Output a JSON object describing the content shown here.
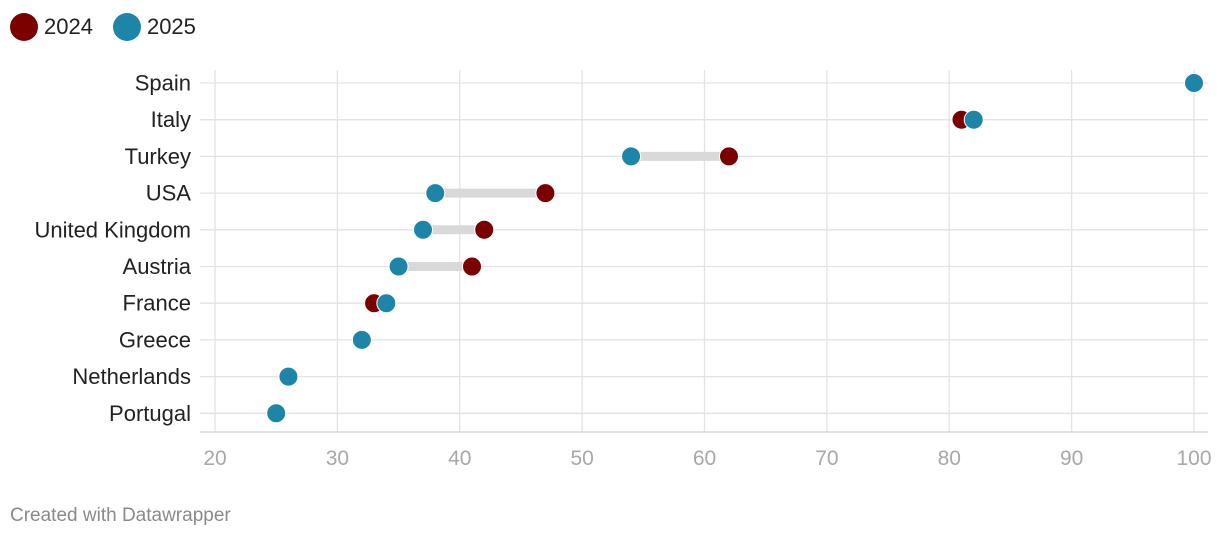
{
  "chart_data": {
    "type": "dot",
    "series": [
      {
        "name": "2024",
        "color": "#7b0000"
      },
      {
        "name": "2025",
        "color": "#1d86a8"
      }
    ],
    "categories": [
      "Spain",
      "Italy",
      "Turkey",
      "USA",
      "United Kingdom",
      "Austria",
      "France",
      "Greece",
      "Netherlands",
      "Portugal"
    ],
    "values_2024": [
      100,
      81,
      62,
      47,
      42,
      41,
      33,
      32,
      26,
      25
    ],
    "values_2025": [
      100,
      82,
      54,
      38,
      37,
      35,
      34,
      32,
      26,
      25
    ],
    "xlim": [
      20,
      100
    ],
    "xticks": [
      20,
      30,
      40,
      50,
      60,
      70,
      80,
      90,
      100
    ],
    "grid": true,
    "legend_position": "top-left"
  },
  "footer": {
    "credit": "Created with Datawrapper"
  }
}
